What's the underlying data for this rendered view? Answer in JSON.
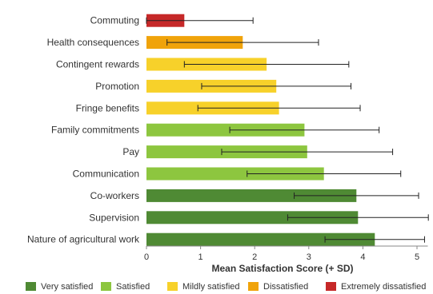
{
  "chart_data": {
    "type": "bar",
    "orientation": "horizontal",
    "title": "",
    "xlabel": "Mean Satisfaction Score (+ SD)",
    "ylabel": "",
    "xlim": [
      0,
      5.2
    ],
    "xticks": [
      "0",
      "1",
      "2",
      "3",
      "4",
      "5"
    ],
    "grid": false,
    "legend_position": "bottom",
    "categories": [
      "Commuting",
      "Health consequences",
      "Contingent rewards",
      "Promotion",
      "Fringe benefits",
      "Family commitments",
      "Pay",
      "Communication",
      "Co-workers",
      "Supervision",
      "Nature of agricultural work"
    ],
    "values": [
      0.7,
      1.78,
      2.22,
      2.4,
      2.45,
      2.92,
      2.97,
      3.28,
      3.88,
      3.91,
      4.22
    ],
    "sd": [
      1.27,
      1.4,
      1.52,
      1.38,
      1.5,
      1.38,
      1.58,
      1.42,
      1.15,
      1.3,
      0.92
    ],
    "levels": [
      "Extremely dissatisfied",
      "Dissatisfied",
      "Mildly satisfied",
      "Mildly satisfied",
      "Mildly satisfied",
      "Satisfied",
      "Satisfied",
      "Satisfied",
      "Very satisfied",
      "Very satisfied",
      "Very satisfied"
    ],
    "legend": [
      {
        "name": "Very satisfied",
        "color": "#4f8a34"
      },
      {
        "name": "Satisfied",
        "color": "#8dc63f"
      },
      {
        "name": "Mildly satisfied",
        "color": "#f7d12a"
      },
      {
        "name": "Dissatisfied",
        "color": "#f0a30a"
      },
      {
        "name": "Extremely dissatisfied",
        "color": "#c62828"
      }
    ]
  }
}
